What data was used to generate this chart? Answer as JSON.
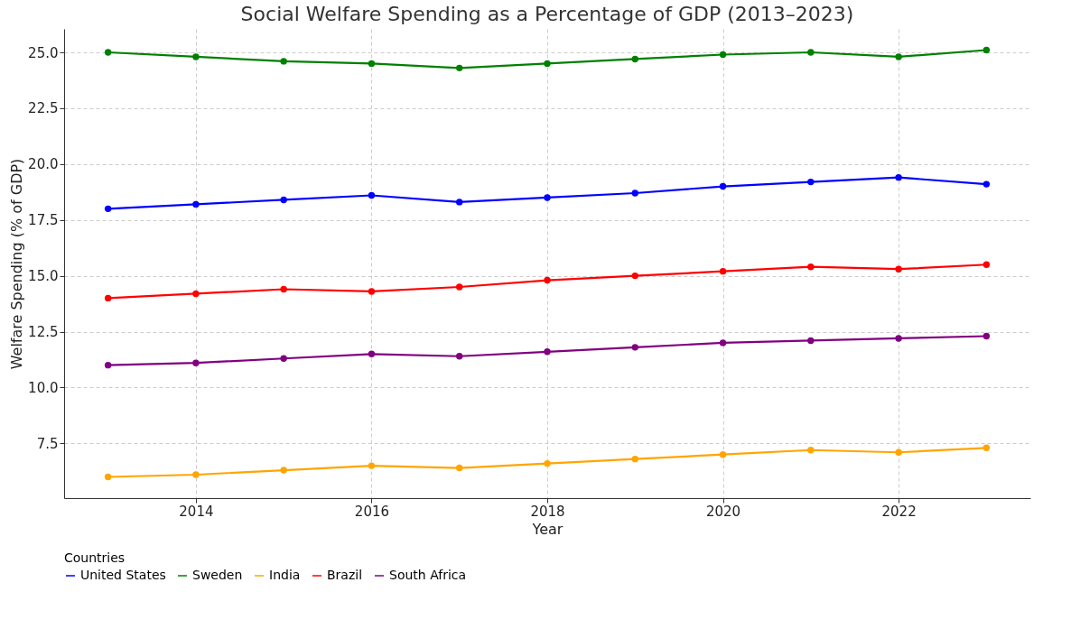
{
  "chart_data": {
    "type": "line",
    "title": "Social Welfare Spending as a Percentage of GDP (2013–2023)",
    "xlabel": "Year",
    "ylabel": "Welfare Spending (% of GDP)",
    "legend_title": "Countries",
    "x": [
      2013,
      2014,
      2015,
      2016,
      2017,
      2018,
      2019,
      2020,
      2021,
      2022,
      2023
    ],
    "series": [
      {
        "name": "United States",
        "color": "#0000ff",
        "values": [
          18.0,
          18.2,
          18.4,
          18.6,
          18.3,
          18.5,
          18.7,
          19.0,
          19.2,
          19.4,
          19.1
        ]
      },
      {
        "name": "Sweden",
        "color": "#008000",
        "values": [
          25.0,
          24.8,
          24.6,
          24.5,
          24.3,
          24.5,
          24.7,
          24.9,
          25.0,
          24.8,
          25.1
        ]
      },
      {
        "name": "India",
        "color": "#ffa500",
        "values": [
          6.0,
          6.1,
          6.3,
          6.5,
          6.4,
          6.6,
          6.8,
          7.0,
          7.2,
          7.1,
          7.3
        ]
      },
      {
        "name": "Brazil",
        "color": "#ff0000",
        "values": [
          14.0,
          14.2,
          14.4,
          14.3,
          14.5,
          14.8,
          15.0,
          15.2,
          15.4,
          15.3,
          15.5
        ]
      },
      {
        "name": "South Africa",
        "color": "#800080",
        "values": [
          11.0,
          11.1,
          11.3,
          11.5,
          11.4,
          11.6,
          11.8,
          12.0,
          12.1,
          12.2,
          12.3
        ]
      }
    ],
    "xlim": [
      2012.5,
      2023.5
    ],
    "xticks": [
      2014,
      2016,
      2018,
      2020,
      2022
    ],
    "ylim": [
      5.05,
      26.05
    ],
    "yticks": [
      {
        "value": 7.5,
        "label": "7.5"
      },
      {
        "value": 10,
        "label": "10.0"
      },
      {
        "value": 12.5,
        "label": "12.5"
      },
      {
        "value": 15,
        "label": "15.0"
      },
      {
        "value": 17.5,
        "label": "17.5"
      },
      {
        "value": 20,
        "label": "20.0"
      },
      {
        "value": 22.5,
        "label": "22.5"
      },
      {
        "value": 25,
        "label": "25.0"
      }
    ],
    "grid": true,
    "legend": "bottom",
    "marker": "circle",
    "line_style": "solid"
  }
}
